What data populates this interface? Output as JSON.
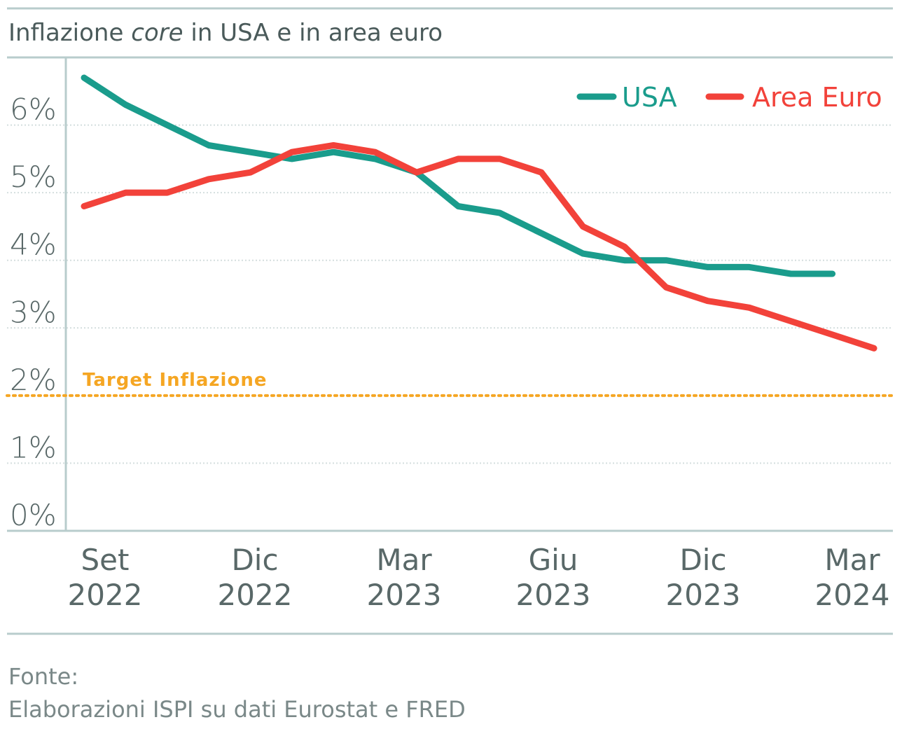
{
  "chart_data": {
    "type": "line",
    "title_prefix": "Inflazione ",
    "title_emphasis": "core",
    "title_suffix": " in USA e in area euro",
    "x_tick_labels": [
      {
        "line1": "Set",
        "line2": "2022"
      },
      {
        "line1": "Dic",
        "line2": "2022"
      },
      {
        "line1": "Mar",
        "line2": "2023"
      },
      {
        "line1": "Giu",
        "line2": "2023"
      },
      {
        "line1": "Dic",
        "line2": "2023"
      },
      {
        "line1": "Mar",
        "line2": "2024"
      }
    ],
    "y_ticks": [
      "0%",
      "1%",
      "2%",
      "3%",
      "4%",
      "5%",
      "6%"
    ],
    "ylim": [
      0,
      7
    ],
    "x_count": 20,
    "grid": true,
    "legend_position": "top-right",
    "series": [
      {
        "name": "USA",
        "color": "#1a9c8c",
        "values": [
          6.7,
          6.3,
          6.0,
          5.7,
          5.6,
          5.5,
          5.6,
          5.5,
          5.3,
          4.8,
          4.7,
          4.4,
          4.1,
          4.0,
          4.0,
          3.9,
          3.9,
          3.8,
          3.8
        ]
      },
      {
        "name": "Area Euro",
        "color": "#f2423a",
        "values": [
          4.8,
          5.0,
          5.0,
          5.2,
          5.3,
          5.6,
          5.7,
          5.6,
          5.3,
          5.5,
          5.5,
          5.3,
          4.5,
          4.2,
          3.6,
          3.4,
          3.3,
          3.1,
          2.9,
          2.7
        ]
      }
    ],
    "target": {
      "value": 2,
      "label": "Target Inflazione",
      "color": "#f5a623"
    }
  },
  "source": {
    "line1": "Fonte:",
    "line2": "Elaborazioni ISPI su dati Eurostat e FRED"
  }
}
